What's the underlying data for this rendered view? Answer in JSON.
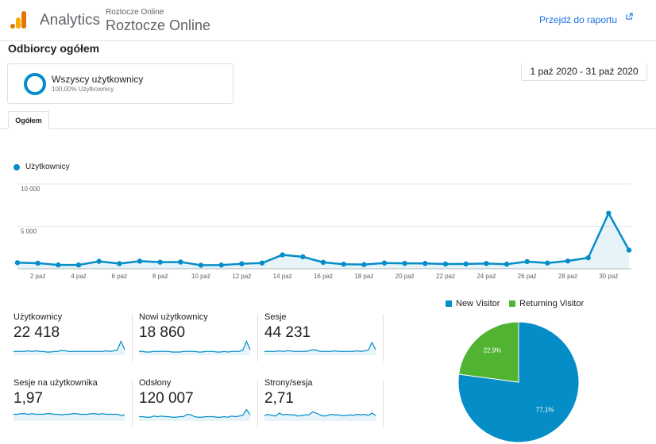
{
  "header": {
    "app_name": "Analytics",
    "account_small": "Roztocze Online",
    "account_big": "Roztocze Online",
    "report_link": "Przejdź do raportu",
    "colors": {
      "logo_dark": "#e37400",
      "logo_light": "#f9ab00",
      "link": "#1a73e8"
    }
  },
  "page": {
    "title": "Odbiorcy ogółem"
  },
  "segment": {
    "name": "Wszyscy użytkownicy",
    "sub": "100,00% Użytkownicy"
  },
  "date_range": "1 paź 2020 - 31 paź 2020",
  "tabs": [
    {
      "label": "Ogółem"
    }
  ],
  "chart_data": [
    {
      "type": "line",
      "series": [
        {
          "name": "Użytkownicy",
          "values": [
            720,
            660,
            460,
            450,
            880,
            610,
            900,
            780,
            800,
            420,
            440,
            590,
            680,
            1640,
            1410,
            760,
            540,
            500,
            680,
            640,
            630,
            560,
            570,
            620,
            540,
            850,
            680,
            920,
            1300,
            6550,
            2200
          ]
        }
      ],
      "x": [
        "1 paź",
        "2 paź",
        "3 paź",
        "4 paź",
        "5 paź",
        "6 paź",
        "7 paź",
        "8 paź",
        "9 paź",
        "10 paź",
        "11 paź",
        "12 paź",
        "13 paź",
        "14 paź",
        "15 paź",
        "16 paź",
        "17 paź",
        "18 paź",
        "19 paź",
        "20 paź",
        "21 paź",
        "22 paź",
        "23 paź",
        "24 paź",
        "25 paź",
        "26 paź",
        "27 paź",
        "28 paź",
        "29 paź",
        "30 paź",
        "31 paź"
      ],
      "x_tick_labels": [
        "2 paź",
        "4 paź",
        "6 paź",
        "8 paź",
        "10 paź",
        "12 paź",
        "14 paź",
        "16 paź",
        "18 paź",
        "20 paź",
        "22 paź",
        "24 paź",
        "26 paź",
        "28 paź",
        "30 paź"
      ],
      "y_tick_labels": [
        "10 000",
        "5 000"
      ],
      "y_ticks": [
        10000,
        5000
      ],
      "ylim": [
        0,
        10000
      ],
      "grid": true,
      "color": "#058dc7"
    },
    {
      "type": "pie",
      "labels": [
        "New Visitor",
        "Returning Visitor"
      ],
      "values": [
        77.1,
        22.9
      ],
      "value_labels": [
        "77,1%",
        "22,9%"
      ],
      "colors": [
        "#058dc7",
        "#50b432"
      ],
      "legend": "top"
    }
  ],
  "metrics": [
    {
      "label": "Użytkownicy",
      "value": "22 418",
      "spark": [
        5,
        5,
        5,
        5,
        6,
        5,
        6,
        5,
        5,
        4,
        4,
        5,
        5,
        7,
        6,
        5,
        5,
        5,
        5,
        5,
        5,
        5,
        5,
        5,
        5,
        6,
        5,
        6,
        7,
        22,
        8
      ]
    },
    {
      "label": "Nowi użytkownicy",
      "value": "18 860",
      "spark": [
        5,
        5,
        4,
        4,
        5,
        5,
        5,
        5,
        5,
        4,
        4,
        4,
        5,
        5,
        5,
        5,
        4,
        4,
        5,
        5,
        5,
        4,
        4,
        5,
        4,
        5,
        5,
        5,
        7,
        22,
        8
      ]
    },
    {
      "label": "Sesje",
      "value": "44 231",
      "spark": [
        5,
        5,
        5,
        5,
        6,
        5,
        6,
        6,
        5,
        5,
        5,
        5,
        6,
        8,
        7,
        5,
        5,
        5,
        5,
        6,
        5,
        5,
        5,
        5,
        5,
        6,
        5,
        6,
        7,
        20,
        8
      ]
    },
    {
      "label": "Sesje na użytkownika",
      "value": "1,97",
      "spark": [
        10,
        10,
        11,
        11,
        10,
        11,
        10,
        10,
        10,
        11,
        11,
        10,
        10,
        9,
        10,
        10,
        11,
        11,
        10,
        10,
        10,
        11,
        11,
        10,
        11,
        10,
        10,
        10,
        10,
        8,
        9
      ]
    },
    {
      "label": "Odsłony",
      "value": "120 007",
      "spark": [
        6,
        6,
        5,
        5,
        7,
        6,
        7,
        6,
        6,
        5,
        5,
        6,
        6,
        10,
        9,
        6,
        5,
        5,
        6,
        6,
        6,
        5,
        5,
        6,
        5,
        7,
        6,
        7,
        8,
        18,
        9
      ]
    },
    {
      "label": "Strony/sesja",
      "value": "2,71",
      "spark": [
        8,
        10,
        8,
        7,
        12,
        9,
        10,
        9,
        9,
        7,
        8,
        9,
        9,
        14,
        12,
        9,
        7,
        8,
        10,
        9,
        9,
        8,
        8,
        9,
        8,
        10,
        9,
        10,
        8,
        12,
        8
      ]
    }
  ]
}
